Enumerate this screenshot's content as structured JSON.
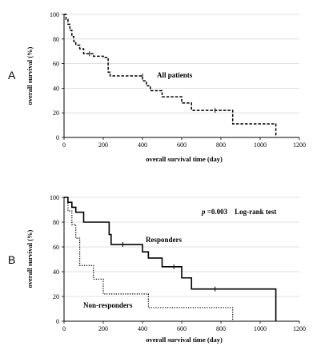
{
  "chart_data": [
    {
      "type": "line",
      "panel_label": "A",
      "xlabel": "overall survival time (day)",
      "ylabel": "overall survival (%)",
      "xlim": [
        0,
        1200
      ],
      "ylim": [
        0,
        100
      ],
      "xticks": [
        "0",
        "200",
        "400",
        "600",
        "800",
        "1000",
        "1200"
      ],
      "yticks": [
        "0",
        "20",
        "40",
        "60",
        "80",
        "100"
      ],
      "grid": "horizontal",
      "annotations": [
        {
          "text": "All patients"
        }
      ],
      "series": [
        {
          "name": "All patients",
          "style": "dashed",
          "x": [
            0,
            10,
            20,
            30,
            40,
            50,
            60,
            80,
            100,
            150,
            200,
            225,
            235,
            400,
            420,
            440,
            500,
            600,
            650,
            860,
            1080
          ],
          "y": [
            100,
            96,
            92,
            87,
            82,
            78,
            75,
            72,
            68,
            66,
            65,
            53,
            50,
            46,
            42,
            38,
            33,
            28,
            22,
            11,
            0
          ],
          "censored": [
            {
              "x": 130,
              "y": 68
            },
            {
              "x": 400,
              "y": 50
            },
            {
              "x": 770,
              "y": 22
            }
          ]
        }
      ]
    },
    {
      "type": "line",
      "panel_label": "B",
      "xlabel": "overall survival time (day)",
      "ylabel": "overall survival (%)",
      "xlim": [
        0,
        1200
      ],
      "ylim": [
        0,
        100
      ],
      "xticks": [
        "0",
        "200",
        "400",
        "600",
        "800",
        "1000",
        "1200"
      ],
      "yticks": [
        "0",
        "20",
        "40",
        "60",
        "80",
        "100"
      ],
      "grid": "horizontal",
      "annotations": [
        {
          "text_italic": "p",
          "text": " =0.003    Log-rank test"
        },
        {
          "text": "Responders"
        },
        {
          "text": "Non-responders"
        }
      ],
      "series": [
        {
          "name": "Responders",
          "style": "solid",
          "x": [
            0,
            20,
            40,
            60,
            100,
            230,
            240,
            400,
            430,
            500,
            600,
            650,
            1080
          ],
          "y": [
            100,
            96,
            92,
            88,
            80,
            70,
            62,
            56,
            51,
            44,
            35,
            26,
            0
          ],
          "censored": [
            {
              "x": 300,
              "y": 62
            },
            {
              "x": 560,
              "y": 44
            },
            {
              "x": 770,
              "y": 26
            }
          ]
        },
        {
          "name": "Non-responders",
          "style": "dotted",
          "x": [
            0,
            20,
            40,
            60,
            80,
            150,
            200,
            430,
            860
          ],
          "y": [
            100,
            89,
            78,
            67,
            45,
            34,
            22,
            11,
            0
          ],
          "censored": []
        }
      ]
    }
  ]
}
